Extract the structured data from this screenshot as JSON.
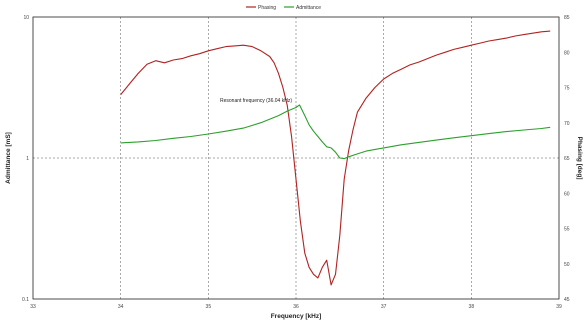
{
  "chart_data": {
    "type": "line",
    "title": "",
    "legend": {
      "placement": "top-center",
      "entries": [
        "Phasing",
        "Admittance"
      ]
    },
    "grid": true,
    "xlabel": "Frequency [kHz]",
    "ylabel_left": "Admittance [mS]",
    "ylabel_right": "Phasing [deg]",
    "xlim": [
      33,
      39
    ],
    "ylim_left": [
      0.1,
      10
    ],
    "yscale_left": "log",
    "ylim_right": [
      45,
      85
    ],
    "x_ticks": [
      "33",
      "34",
      "35",
      "36",
      "37",
      "38",
      "39"
    ],
    "y_left_ticks": [
      "10",
      "1",
      "0.1"
    ],
    "y_right_ticks": [
      "85",
      "80",
      "75",
      "70",
      "65",
      "60",
      "55",
      "50",
      "45"
    ],
    "annotation": "Resonant frequency (36.04 kHz)",
    "series": [
      {
        "name": "Phasing",
        "color": "#b22222",
        "axis": "right",
        "x": [
          34.0,
          34.1,
          34.2,
          34.3,
          34.4,
          34.5,
          34.6,
          34.7,
          34.8,
          34.9,
          35.0,
          35.1,
          35.2,
          35.3,
          35.4,
          35.5,
          35.6,
          35.7,
          35.75,
          35.8,
          35.85,
          35.9,
          35.95,
          36.0,
          36.05,
          36.1,
          36.15,
          36.2,
          36.25,
          36.3,
          36.35,
          36.4,
          36.45,
          36.5,
          36.55,
          36.6,
          36.65,
          36.7,
          36.8,
          36.9,
          37.0,
          37.1,
          37.2,
          37.3,
          37.4,
          37.5,
          37.6,
          37.7,
          37.8,
          37.9,
          38.0,
          38.1,
          38.2,
          38.3,
          38.4,
          38.5,
          38.6,
          38.7,
          38.8,
          38.9
        ],
        "values": [
          74.0,
          75.5,
          77.0,
          78.3,
          78.8,
          78.5,
          78.9,
          79.1,
          79.5,
          79.8,
          80.2,
          80.5,
          80.8,
          80.9,
          81.0,
          80.8,
          80.2,
          79.4,
          78.5,
          77.0,
          75.0,
          72.5,
          68.0,
          62.0,
          56.0,
          51.5,
          49.5,
          48.5,
          48.0,
          49.5,
          50.5,
          47.0,
          48.5,
          54.0,
          62.0,
          66.0,
          69.0,
          71.5,
          73.5,
          75.0,
          76.2,
          77.0,
          77.6,
          78.2,
          78.6,
          79.1,
          79.6,
          80.0,
          80.4,
          80.7,
          81.0,
          81.3,
          81.6,
          81.8,
          82.0,
          82.3,
          82.5,
          82.7,
          82.9,
          83.0
        ]
      },
      {
        "name": "Admittance",
        "color": "#2ca02c",
        "axis": "left",
        "x": [
          34.0,
          34.2,
          34.4,
          34.6,
          34.8,
          35.0,
          35.2,
          35.4,
          35.6,
          35.8,
          35.9,
          36.0,
          36.04,
          36.1,
          36.15,
          36.2,
          36.25,
          36.3,
          36.35,
          36.4,
          36.45,
          36.5,
          36.55,
          36.6,
          36.7,
          36.8,
          37.0,
          37.2,
          37.4,
          37.6,
          37.8,
          38.0,
          38.2,
          38.4,
          38.6,
          38.8,
          38.9
        ],
        "values": [
          1.28,
          1.3,
          1.33,
          1.38,
          1.42,
          1.48,
          1.55,
          1.63,
          1.78,
          2.0,
          2.15,
          2.28,
          2.38,
          2.0,
          1.72,
          1.55,
          1.42,
          1.3,
          1.2,
          1.18,
          1.1,
          1.0,
          0.99,
          1.02,
          1.07,
          1.12,
          1.18,
          1.24,
          1.29,
          1.34,
          1.39,
          1.44,
          1.49,
          1.54,
          1.58,
          1.62,
          1.65
        ]
      }
    ]
  }
}
